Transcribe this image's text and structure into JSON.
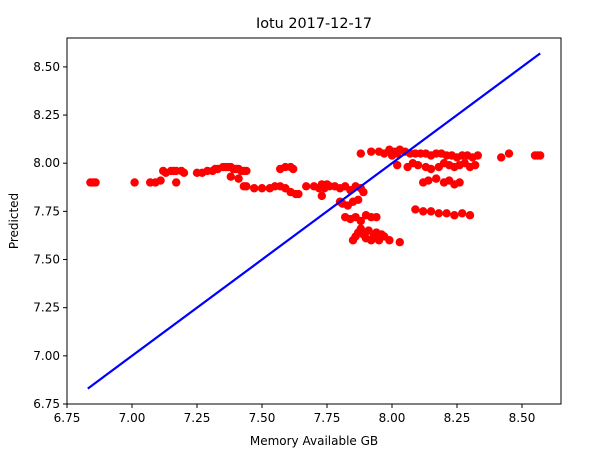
{
  "chart_data": {
    "type": "scatter",
    "title": "Iotu 2017-12-17",
    "xlabel": "Memory Available GB",
    "ylabel": "Predicted",
    "xlim": [
      6.75,
      8.65
    ],
    "ylim": [
      6.75,
      8.65
    ],
    "xticks": [
      6.75,
      7.0,
      7.25,
      7.5,
      7.75,
      8.0,
      8.25,
      8.5
    ],
    "yticks": [
      6.75,
      7.0,
      7.25,
      7.5,
      7.75,
      8.0,
      8.25,
      8.5
    ],
    "xtick_labels": [
      "6.75",
      "7.00",
      "7.25",
      "7.50",
      "7.75",
      "8.00",
      "8.25",
      "8.50"
    ],
    "ytick_labels": [
      "6.75",
      "7.00",
      "7.25",
      "7.50",
      "7.75",
      "8.00",
      "8.25",
      "8.50"
    ],
    "grid": false,
    "legend": "none",
    "colors": {
      "points": "#ff0000",
      "line": "#0000ff"
    },
    "series": [
      {
        "kind": "points",
        "x": [
          6.84,
          6.85,
          6.86,
          7.01,
          7.07,
          7.09,
          7.11,
          7.12,
          7.13,
          7.15,
          7.16,
          7.17,
          7.19,
          7.2,
          7.17,
          7.25,
          7.27,
          7.29,
          7.31,
          7.32,
          7.33,
          7.35,
          7.36,
          7.37,
          7.38,
          7.39,
          7.4,
          7.41,
          7.42,
          7.43,
          7.44,
          7.38,
          7.41,
          7.43,
          7.44,
          7.47,
          7.5,
          7.53,
          7.55,
          7.57,
          7.59,
          7.61,
          7.57,
          7.59,
          7.61,
          7.62,
          7.63,
          7.64,
          7.67,
          7.7,
          7.72,
          7.73,
          7.74,
          7.76,
          7.78,
          7.8,
          7.82,
          7.84,
          7.86,
          7.88,
          7.73,
          7.75,
          7.8,
          7.81,
          7.83,
          7.85,
          7.87,
          7.89,
          7.82,
          7.84,
          7.86,
          7.88,
          7.9,
          7.92,
          7.94,
          7.85,
          7.86,
          7.87,
          7.88,
          7.89,
          7.9,
          7.91,
          7.92,
          7.93,
          7.94,
          7.95,
          7.96,
          7.97,
          7.99,
          8.03,
          7.88,
          7.92,
          7.95,
          7.97,
          7.99,
          8.0,
          8.01,
          8.02,
          8.03,
          8.05,
          8.07,
          8.09,
          8.11,
          8.13,
          8.15,
          8.17,
          8.19,
          8.21,
          8.23,
          8.25,
          8.27,
          8.29,
          8.31,
          8.33,
          8.12,
          8.14,
          8.17,
          8.2,
          8.22,
          8.24,
          8.26,
          8.02,
          8.06,
          8.08,
          8.1,
          8.13,
          8.15,
          8.18,
          8.2,
          8.22,
          8.24,
          8.26,
          8.28,
          8.3,
          8.32,
          8.09,
          8.12,
          8.15,
          8.18,
          8.21,
          8.24,
          8.27,
          8.3,
          8.42,
          8.45,
          8.55,
          8.56,
          8.57
        ],
        "y": [
          7.9,
          7.9,
          7.9,
          7.9,
          7.9,
          7.9,
          7.91,
          7.96,
          7.95,
          7.96,
          7.96,
          7.96,
          7.96,
          7.95,
          7.9,
          7.95,
          7.95,
          7.96,
          7.96,
          7.97,
          7.97,
          7.98,
          7.98,
          7.98,
          7.98,
          7.97,
          7.97,
          7.97,
          7.96,
          7.96,
          7.96,
          7.93,
          7.92,
          7.88,
          7.88,
          7.87,
          7.87,
          7.87,
          7.88,
          7.88,
          7.87,
          7.85,
          7.97,
          7.98,
          7.98,
          7.97,
          7.84,
          7.84,
          7.88,
          7.88,
          7.87,
          7.83,
          7.87,
          7.88,
          7.88,
          7.87,
          7.88,
          7.86,
          7.88,
          7.87,
          7.89,
          7.89,
          7.8,
          7.79,
          7.78,
          7.8,
          7.81,
          7.85,
          7.72,
          7.71,
          7.72,
          7.7,
          7.73,
          7.72,
          7.72,
          7.6,
          7.62,
          7.64,
          7.66,
          7.63,
          7.61,
          7.65,
          7.6,
          7.62,
          7.64,
          7.6,
          7.63,
          7.62,
          7.6,
          7.59,
          8.05,
          8.06,
          8.06,
          8.05,
          8.07,
          8.04,
          8.06,
          8.05,
          8.07,
          8.06,
          8.05,
          8.05,
          8.05,
          8.05,
          8.04,
          8.05,
          8.05,
          8.04,
          8.04,
          8.03,
          8.04,
          8.04,
          8.03,
          8.04,
          7.9,
          7.91,
          7.92,
          7.9,
          7.91,
          7.89,
          7.9,
          7.99,
          7.98,
          8.0,
          7.99,
          7.98,
          7.97,
          7.98,
          8.0,
          7.99,
          7.98,
          7.99,
          8.0,
          7.98,
          7.99,
          7.76,
          7.75,
          7.75,
          7.74,
          7.74,
          7.73,
          7.74,
          7.73,
          8.03,
          8.05,
          8.04,
          8.04,
          8.04
        ]
      },
      {
        "kind": "line",
        "x": [
          6.83,
          8.57
        ],
        "y": [
          6.83,
          8.57
        ]
      }
    ]
  }
}
